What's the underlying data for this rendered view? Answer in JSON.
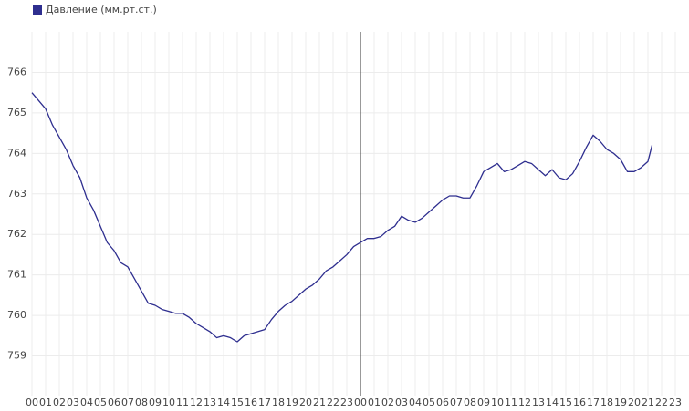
{
  "chart_data": {
    "type": "line",
    "series": [
      {
        "name": "Давление (мм.рт.ст.)",
        "color": "#2e2e8f",
        "x": [
          0,
          0.5,
          1,
          1.5,
          2,
          2.5,
          3,
          3.5,
          4,
          4.5,
          5,
          5.5,
          6,
          6.5,
          7,
          7.5,
          8,
          8.5,
          9,
          9.5,
          10,
          10.5,
          11,
          11.5,
          12,
          12.5,
          13,
          13.5,
          14,
          14.5,
          15,
          15.5,
          16,
          16.5,
          17,
          17.5,
          18,
          18.5,
          19,
          19.5,
          20,
          20.5,
          21,
          21.5,
          22,
          22.5,
          23,
          23.5,
          24,
          24.5,
          25,
          25.5,
          26,
          26.5,
          27,
          27.5,
          28,
          28.5,
          29,
          29.5,
          30,
          30.5,
          31,
          31.5,
          32,
          32.5,
          33,
          33.5,
          34,
          34.5,
          35,
          35.5,
          36,
          36.5,
          37,
          37.5,
          38,
          38.5,
          39,
          39.5,
          40,
          40.5,
          41,
          41.5,
          42,
          42.5,
          43,
          43.5,
          44,
          44.5,
          45,
          45.3
        ],
        "values": [
          765.5,
          765.3,
          765.1,
          764.7,
          764.4,
          764.1,
          763.7,
          763.4,
          762.9,
          762.6,
          762.2,
          761.8,
          761.6,
          761.3,
          761.2,
          760.9,
          760.6,
          760.3,
          760.25,
          760.15,
          760.1,
          760.05,
          760.05,
          759.95,
          759.8,
          759.7,
          759.6,
          759.45,
          759.5,
          759.45,
          759.35,
          759.5,
          759.55,
          759.6,
          759.65,
          759.9,
          760.1,
          760.25,
          760.35,
          760.5,
          760.65,
          760.75,
          760.9,
          761.1,
          761.2,
          761.35,
          761.5,
          761.7,
          761.8,
          761.9,
          761.9,
          761.95,
          762.1,
          762.2,
          762.45,
          762.35,
          762.3,
          762.4,
          762.55,
          762.7,
          762.85,
          762.95,
          762.95,
          762.9,
          762.9,
          763.2,
          763.55,
          763.65,
          763.75,
          763.55,
          763.6,
          763.7,
          763.8,
          763.75,
          763.6,
          763.45,
          763.6,
          763.4,
          763.35,
          763.5,
          763.8,
          764.15,
          764.45,
          764.3,
          764.1,
          764.0,
          763.85,
          763.55,
          763.55,
          763.65,
          763.8,
          764.2
        ]
      }
    ],
    "xlim": [
      0,
      48
    ],
    "xticks": [
      {
        "value": 0,
        "label": "00"
      },
      {
        "value": 1,
        "label": "01"
      },
      {
        "value": 2,
        "label": "02"
      },
      {
        "value": 3,
        "label": "03"
      },
      {
        "value": 4,
        "label": "04"
      },
      {
        "value": 5,
        "label": "05"
      },
      {
        "value": 6,
        "label": "06"
      },
      {
        "value": 7,
        "label": "07"
      },
      {
        "value": 8,
        "label": "08"
      },
      {
        "value": 9,
        "label": "09"
      },
      {
        "value": 10,
        "label": "10"
      },
      {
        "value": 11,
        "label": "11"
      },
      {
        "value": 12,
        "label": "12"
      },
      {
        "value": 13,
        "label": "13"
      },
      {
        "value": 14,
        "label": "14"
      },
      {
        "value": 15,
        "label": "15"
      },
      {
        "value": 16,
        "label": "16"
      },
      {
        "value": 17,
        "label": "17"
      },
      {
        "value": 18,
        "label": "18"
      },
      {
        "value": 19,
        "label": "19"
      },
      {
        "value": 20,
        "label": "20"
      },
      {
        "value": 21,
        "label": "21"
      },
      {
        "value": 22,
        "label": "22"
      },
      {
        "value": 23,
        "label": "23"
      },
      {
        "value": 24,
        "label": "00"
      },
      {
        "value": 25,
        "label": "01"
      },
      {
        "value": 26,
        "label": "02"
      },
      {
        "value": 27,
        "label": "03"
      },
      {
        "value": 28,
        "label": "04"
      },
      {
        "value": 29,
        "label": "05"
      },
      {
        "value": 30,
        "label": "06"
      },
      {
        "value": 31,
        "label": "07"
      },
      {
        "value": 32,
        "label": "08"
      },
      {
        "value": 33,
        "label": "09"
      },
      {
        "value": 34,
        "label": "10"
      },
      {
        "value": 35,
        "label": "11"
      },
      {
        "value": 36,
        "label": "12"
      },
      {
        "value": 37,
        "label": "13"
      },
      {
        "value": 38,
        "label": "14"
      },
      {
        "value": 39,
        "label": "15"
      },
      {
        "value": 40,
        "label": "16"
      },
      {
        "value": 41,
        "label": "17"
      },
      {
        "value": 42,
        "label": "18"
      },
      {
        "value": 43,
        "label": "19"
      },
      {
        "value": 44,
        "label": "20"
      },
      {
        "value": 45,
        "label": "21"
      },
      {
        "value": 46,
        "label": "22"
      },
      {
        "value": 47,
        "label": "23"
      }
    ],
    "ylim": [
      758,
      767
    ],
    "yticks": [
      759,
      760,
      761,
      762,
      763,
      764,
      765,
      766
    ],
    "vline": 24,
    "grid": true,
    "legend": "top-left"
  }
}
